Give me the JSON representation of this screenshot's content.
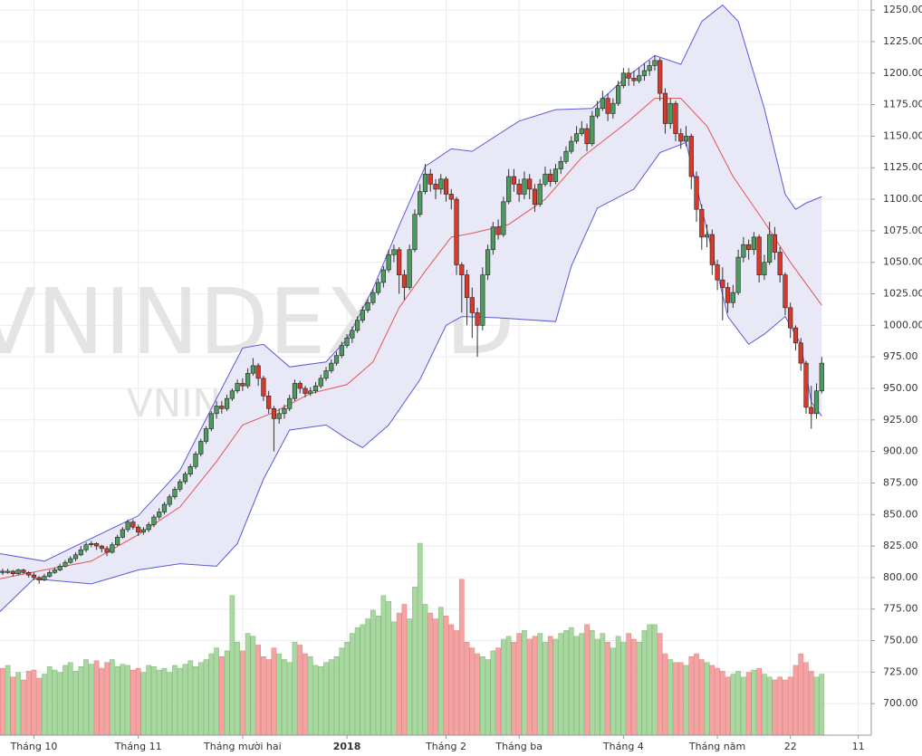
{
  "chart_data": {
    "type": "candlestick",
    "watermark": "VNINDEX, D",
    "watermark_sub": "VNINDEX",
    "ylim": [
      675,
      1258
    ],
    "yticks": [
      {
        "value": 700,
        "label": "700.00"
      },
      {
        "value": 725,
        "label": "725.00"
      },
      {
        "value": 750,
        "label": "750.00"
      },
      {
        "value": 775,
        "label": "775.00"
      },
      {
        "value": 800,
        "label": "800.00"
      },
      {
        "value": 825,
        "label": "825.00"
      },
      {
        "value": 850,
        "label": "850.00"
      },
      {
        "value": 875,
        "label": "875.00"
      },
      {
        "value": 900,
        "label": "900.00"
      },
      {
        "value": 925,
        "label": "925.00"
      },
      {
        "value": 950,
        "label": "950.00"
      },
      {
        "value": 975,
        "label": "975.00"
      },
      {
        "value": 1000,
        "label": "1000.00"
      },
      {
        "value": 1025,
        "label": "1025.00"
      },
      {
        "value": 1050,
        "label": "1050.00"
      },
      {
        "value": 1075,
        "label": "1075.00"
      },
      {
        "value": 1100,
        "label": "1100.00"
      },
      {
        "value": 1125,
        "label": "1125.00"
      },
      {
        "value": 1150,
        "label": "1150.00"
      },
      {
        "value": 1175,
        "label": "1175.00"
      },
      {
        "value": 1200,
        "label": "1200.00"
      },
      {
        "value": 1225,
        "label": "1225.00"
      },
      {
        "value": 1250,
        "label": "1250.00"
      }
    ],
    "xlim": [
      -0.5,
      166.5
    ],
    "xticks": [
      {
        "value": 6,
        "label": "Tháng 10"
      },
      {
        "value": 26,
        "label": "Tháng 11"
      },
      {
        "value": 46,
        "label": "Tháng mười hai"
      },
      {
        "value": 66,
        "label": "2018",
        "bold": true
      },
      {
        "value": 85,
        "label": "Tháng 2"
      },
      {
        "value": 99,
        "label": "Tháng ba"
      },
      {
        "value": 119,
        "label": "Tháng 4"
      },
      {
        "value": 137,
        "label": "Tháng năm"
      },
      {
        "value": 151,
        "label": "22"
      },
      {
        "value": 164,
        "label": "11"
      }
    ],
    "grid": true,
    "up_color": "#4f9a5f",
    "down_color": "#d8392b",
    "wick_color": "#333333",
    "volume_up_color": "#a8d8a0",
    "volume_down_color": "#f4a3a3",
    "band_fill": "#e8e8f6",
    "ohlc": [
      [
        805,
        807,
        802,
        804
      ],
      [
        804,
        807,
        803,
        805
      ],
      [
        805,
        806,
        801,
        803
      ],
      [
        803,
        807,
        802,
        806
      ],
      [
        806,
        807,
        803,
        804
      ],
      [
        804,
        805,
        800,
        802
      ],
      [
        802,
        804,
        798,
        800
      ],
      [
        800,
        801,
        795,
        798
      ],
      [
        798,
        803,
        797,
        801
      ],
      [
        801,
        806,
        800,
        804
      ],
      [
        804,
        808,
        803,
        806
      ],
      [
        806,
        811,
        805,
        809
      ],
      [
        809,
        814,
        808,
        812
      ],
      [
        812,
        817,
        811,
        815
      ],
      [
        815,
        820,
        813,
        818
      ],
      [
        818,
        825,
        817,
        822
      ],
      [
        822,
        828,
        820,
        826
      ],
      [
        826,
        829,
        824,
        827
      ],
      [
        827,
        828,
        822,
        825
      ],
      [
        825,
        826,
        820,
        823
      ],
      [
        823,
        825,
        817,
        820
      ],
      [
        820,
        828,
        819,
        826
      ],
      [
        826,
        834,
        825,
        832
      ],
      [
        832,
        840,
        831,
        838
      ],
      [
        838,
        846,
        836,
        844
      ],
      [
        844,
        846,
        838,
        840
      ],
      [
        840,
        842,
        833,
        836
      ],
      [
        836,
        840,
        834,
        838
      ],
      [
        838,
        844,
        836,
        842
      ],
      [
        842,
        850,
        840,
        848
      ],
      [
        848,
        855,
        846,
        852
      ],
      [
        852,
        860,
        850,
        858
      ],
      [
        858,
        866,
        856,
        864
      ],
      [
        864,
        872,
        862,
        870
      ],
      [
        870,
        878,
        868,
        876
      ],
      [
        876,
        884,
        874,
        882
      ],
      [
        882,
        890,
        880,
        888
      ],
      [
        888,
        900,
        886,
        898
      ],
      [
        898,
        910,
        896,
        908
      ],
      [
        908,
        920,
        906,
        918
      ],
      [
        918,
        932,
        916,
        930
      ],
      [
        930,
        940,
        926,
        936
      ],
      [
        936,
        940,
        930,
        934
      ],
      [
        934,
        945,
        932,
        942
      ],
      [
        942,
        950,
        940,
        948
      ],
      [
        948,
        957,
        946,
        954
      ],
      [
        954,
        958,
        948,
        952
      ],
      [
        952,
        966,
        950,
        962
      ],
      [
        962,
        974,
        960,
        968
      ],
      [
        968,
        970,
        952,
        958
      ],
      [
        958,
        960,
        940,
        944
      ],
      [
        944,
        948,
        930,
        934
      ],
      [
        934,
        936,
        900,
        926
      ],
      [
        926,
        934,
        922,
        930
      ],
      [
        930,
        937,
        926,
        934
      ],
      [
        934,
        945,
        932,
        942
      ],
      [
        942,
        957,
        940,
        954
      ],
      [
        954,
        956,
        946,
        950
      ],
      [
        950,
        952,
        943,
        946
      ],
      [
        946,
        951,
        944,
        948
      ],
      [
        948,
        955,
        946,
        952
      ],
      [
        952,
        961,
        950,
        958
      ],
      [
        958,
        967,
        956,
        964
      ],
      [
        964,
        973,
        962,
        970
      ],
      [
        970,
        979,
        968,
        976
      ],
      [
        976,
        987,
        974,
        984
      ],
      [
        984,
        993,
        982,
        990
      ],
      [
        990,
        999,
        986,
        996
      ],
      [
        996,
        1007,
        994,
        1004
      ],
      [
        1004,
        1015,
        1002,
        1012
      ],
      [
        1012,
        1021,
        1010,
        1018
      ],
      [
        1018,
        1029,
        1016,
        1026
      ],
      [
        1026,
        1037,
        1024,
        1034
      ],
      [
        1034,
        1047,
        1030,
        1044
      ],
      [
        1044,
        1060,
        1042,
        1056
      ],
      [
        1056,
        1064,
        1050,
        1060
      ],
      [
        1060,
        1062,
        1025,
        1040
      ],
      [
        1040,
        1044,
        1020,
        1030
      ],
      [
        1030,
        1064,
        1028,
        1060
      ],
      [
        1060,
        1092,
        1058,
        1088
      ],
      [
        1088,
        1112,
        1086,
        1106
      ],
      [
        1106,
        1128,
        1104,
        1120
      ],
      [
        1120,
        1124,
        1106,
        1112
      ],
      [
        1112,
        1116,
        1100,
        1108
      ],
      [
        1108,
        1120,
        1104,
        1116
      ],
      [
        1116,
        1118,
        1098,
        1104
      ],
      [
        1104,
        1108,
        1092,
        1100
      ],
      [
        1100,
        1102,
        1040,
        1048
      ],
      [
        1048,
        1050,
        1010,
        1040
      ],
      [
        1040,
        1044,
        1000,
        1022
      ],
      [
        1022,
        1030,
        990,
        1010
      ],
      [
        1010,
        1014,
        975,
        1000
      ],
      [
        1000,
        1046,
        996,
        1040
      ],
      [
        1040,
        1064,
        1036,
        1060
      ],
      [
        1060,
        1082,
        1056,
        1078
      ],
      [
        1078,
        1084,
        1068,
        1072
      ],
      [
        1072,
        1102,
        1070,
        1098
      ],
      [
        1098,
        1124,
        1096,
        1118
      ],
      [
        1118,
        1124,
        1106,
        1112
      ],
      [
        1112,
        1116,
        1098,
        1104
      ],
      [
        1104,
        1122,
        1100,
        1116
      ],
      [
        1116,
        1120,
        1100,
        1108
      ],
      [
        1108,
        1112,
        1090,
        1096
      ],
      [
        1096,
        1116,
        1094,
        1112
      ],
      [
        1112,
        1126,
        1110,
        1120
      ],
      [
        1120,
        1124,
        1110,
        1114
      ],
      [
        1114,
        1128,
        1112,
        1124
      ],
      [
        1124,
        1134,
        1120,
        1130
      ],
      [
        1130,
        1142,
        1128,
        1138
      ],
      [
        1138,
        1150,
        1136,
        1146
      ],
      [
        1146,
        1158,
        1144,
        1152
      ],
      [
        1152,
        1162,
        1150,
        1156
      ],
      [
        1156,
        1160,
        1138,
        1144
      ],
      [
        1144,
        1170,
        1142,
        1166
      ],
      [
        1166,
        1178,
        1164,
        1172
      ],
      [
        1172,
        1186,
        1170,
        1180
      ],
      [
        1180,
        1184,
        1162,
        1168
      ],
      [
        1168,
        1180,
        1164,
        1176
      ],
      [
        1176,
        1194,
        1174,
        1190
      ],
      [
        1190,
        1204,
        1188,
        1200
      ],
      [
        1200,
        1204,
        1190,
        1196
      ],
      [
        1196,
        1202,
        1190,
        1194
      ],
      [
        1194,
        1204,
        1192,
        1198
      ],
      [
        1198,
        1208,
        1194,
        1202
      ],
      [
        1202,
        1210,
        1198,
        1206
      ],
      [
        1206,
        1214,
        1202,
        1210
      ],
      [
        1210,
        1212,
        1178,
        1184
      ],
      [
        1184,
        1188,
        1152,
        1160
      ],
      [
        1160,
        1180,
        1156,
        1176
      ],
      [
        1176,
        1178,
        1146,
        1152
      ],
      [
        1152,
        1156,
        1140,
        1146
      ],
      [
        1146,
        1158,
        1142,
        1150
      ],
      [
        1150,
        1152,
        1108,
        1118
      ],
      [
        1118,
        1122,
        1082,
        1092
      ],
      [
        1092,
        1096,
        1060,
        1070
      ],
      [
        1070,
        1080,
        1062,
        1072
      ],
      [
        1072,
        1076,
        1040,
        1048
      ],
      [
        1048,
        1052,
        1028,
        1036
      ],
      [
        1036,
        1046,
        1004,
        1030
      ],
      [
        1030,
        1034,
        1010,
        1018
      ],
      [
        1018,
        1032,
        1014,
        1026
      ],
      [
        1026,
        1060,
        1024,
        1054
      ],
      [
        1054,
        1070,
        1050,
        1064
      ],
      [
        1064,
        1068,
        1052,
        1060
      ],
      [
        1060,
        1074,
        1056,
        1070
      ],
      [
        1070,
        1072,
        1034,
        1040
      ],
      [
        1040,
        1056,
        1036,
        1050
      ],
      [
        1050,
        1082,
        1048,
        1072
      ],
      [
        1072,
        1078,
        1052,
        1058
      ],
      [
        1058,
        1062,
        1034,
        1040
      ],
      [
        1040,
        1042,
        1008,
        1014
      ],
      [
        1014,
        1018,
        990,
        998
      ],
      [
        998,
        1000,
        980,
        986
      ],
      [
        986,
        990,
        964,
        970
      ],
      [
        970,
        972,
        930,
        935
      ],
      [
        935,
        952,
        918,
        930
      ],
      [
        930,
        954,
        926,
        948
      ],
      [
        948,
        975,
        946,
        970
      ]
    ],
    "volume": [
      115,
      120,
      100,
      108,
      95,
      110,
      112,
      98,
      105,
      118,
      112,
      108,
      120,
      125,
      110,
      118,
      130,
      122,
      128,
      115,
      125,
      130,
      118,
      122,
      120,
      112,
      115,
      108,
      120,
      118,
      112,
      115,
      108,
      120,
      115,
      122,
      128,
      118,
      125,
      130,
      140,
      150,
      135,
      145,
      240,
      160,
      145,
      175,
      170,
      155,
      135,
      130,
      150,
      140,
      130,
      125,
      160,
      155,
      140,
      135,
      120,
      118,
      125,
      130,
      135,
      150,
      160,
      175,
      185,
      190,
      200,
      215,
      205,
      240,
      230,
      195,
      210,
      225,
      200,
      255,
      330,
      225,
      210,
      200,
      220,
      205,
      190,
      180,
      268,
      160,
      150,
      140,
      135,
      130,
      145,
      150,
      165,
      170,
      160,
      175,
      180,
      165,
      170,
      175,
      160,
      170,
      165,
      175,
      180,
      185,
      170,
      175,
      190,
      180,
      165,
      175,
      160,
      150,
      170,
      160,
      175,
      165,
      160,
      180,
      190,
      190,
      175,
      140,
      130,
      125,
      125,
      120,
      135,
      140,
      130,
      125,
      120,
      115,
      110,
      100,
      105,
      110,
      100,
      108,
      112,
      115,
      105,
      100,
      95,
      100,
      95,
      100,
      120,
      140,
      125,
      110,
      100,
      105
    ],
    "bands": [
      {
        "color": "#5a5ad8",
        "x": [
          -0.5,
          8,
          17,
          26,
          34,
          41,
          46,
          50,
          55,
          62,
          66,
          71,
          76,
          81,
          86,
          90,
          99,
          106,
          113,
          119,
          125,
          130,
          134,
          138,
          141,
          146,
          150,
          152,
          154,
          157
        ],
        "values": [
          819,
          813,
          831,
          849,
          885,
          942,
          982,
          985,
          967,
          971,
          989,
          1029,
          1079,
          1126,
          1140,
          1138,
          1162,
          1171,
          1172,
          1195,
          1214,
          1207,
          1241,
          1254,
          1241,
          1172,
          1104,
          1092,
          1097,
          1102
        ]
      },
      {
        "color": "#e05555",
        "x": [
          -0.5,
          8,
          17,
          26,
          34,
          41,
          46,
          52,
          59,
          66,
          71,
          76,
          81,
          86,
          90,
          97,
          104,
          111,
          120,
          125,
          130,
          135,
          140,
          146,
          151,
          157
        ],
        "values": [
          799,
          806,
          813,
          834,
          856,
          892,
          921,
          931,
          946,
          953,
          971,
          1014,
          1043,
          1070,
          1073,
          1080,
          1100,
          1133,
          1162,
          1180,
          1180,
          1158,
          1118,
          1082,
          1050,
          1016
        ]
      },
      {
        "color": "#5a5ad8",
        "x": [
          -0.5,
          6,
          17,
          26,
          34,
          41,
          45,
          50,
          55,
          62,
          66,
          69,
          74,
          80,
          85,
          88,
          95,
          106,
          109,
          114,
          121,
          126,
          131,
          134,
          139,
          143,
          146,
          150,
          153,
          155,
          157
        ],
        "values": [
          773,
          799,
          795,
          806,
          811,
          809,
          827,
          878,
          917,
          921,
          910,
          903,
          921,
          957,
          1000,
          1007,
          1006,
          1003,
          1047,
          1093,
          1108,
          1137,
          1145,
          1093,
          1007,
          985,
          993,
          1007,
          985,
          939,
          928
        ]
      }
    ]
  }
}
